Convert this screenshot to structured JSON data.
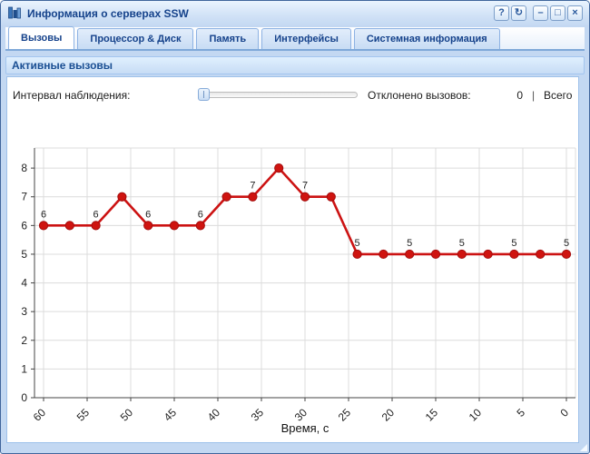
{
  "window": {
    "title": "Информация о серверах SSW",
    "icon": "bar-chart-icon",
    "buttons": [
      {
        "name": "help",
        "glyph": "?"
      },
      {
        "name": "refresh",
        "glyph": "↻"
      },
      {
        "name": "minimize",
        "glyph": "–"
      },
      {
        "name": "maximize",
        "glyph": "□"
      },
      {
        "name": "close",
        "glyph": "×"
      }
    ]
  },
  "tabs": [
    {
      "label": "Вызовы",
      "active": true
    },
    {
      "label": "Процессор & Диск",
      "active": false
    },
    {
      "label": "Память",
      "active": false
    },
    {
      "label": "Интерфейсы",
      "active": false
    },
    {
      "label": "Системная информация",
      "active": false
    }
  ],
  "panel": {
    "header": "Активные вызовы"
  },
  "controls": {
    "interval_label": "Интервал наблюдения:",
    "slider": {
      "position_percent": 0
    },
    "rejected_label": "Отклонено вызовов:",
    "rejected_value": "0",
    "separator": "|",
    "total_label": "Всего"
  },
  "chart_data": {
    "type": "line",
    "title": "",
    "xlabel": "Время, с",
    "ylabel": "",
    "x": [
      60,
      57,
      54,
      51,
      48,
      45,
      42,
      39,
      36,
      33,
      30,
      27,
      24,
      21,
      18,
      15,
      12,
      9,
      6,
      3,
      0
    ],
    "values": [
      6,
      6,
      6,
      7,
      6,
      6,
      6,
      7,
      7,
      8,
      7,
      7,
      5,
      5,
      5,
      5,
      5,
      5,
      5,
      5,
      5
    ],
    "point_labels": [
      "6",
      null,
      "6",
      null,
      "6",
      null,
      "6",
      null,
      "7",
      null,
      "7",
      null,
      "5",
      null,
      "5",
      null,
      "5",
      null,
      "5",
      null,
      "5"
    ],
    "x_ticks": [
      60,
      55,
      50,
      45,
      40,
      35,
      30,
      25,
      20,
      15,
      10,
      5,
      0
    ],
    "y_ticks": [
      0,
      1,
      2,
      3,
      4,
      5,
      6,
      7,
      8
    ],
    "ylim": [
      0,
      8.7
    ],
    "x_axis_reversed": true,
    "grid": true,
    "legend": "none",
    "line_color": "#cc1212",
    "marker_color": "#cf1410",
    "marker_edge_color": "#a50c0c",
    "label_color": "#222222",
    "grid_color": "#dcdcdc",
    "axis_color": "#444444"
  }
}
